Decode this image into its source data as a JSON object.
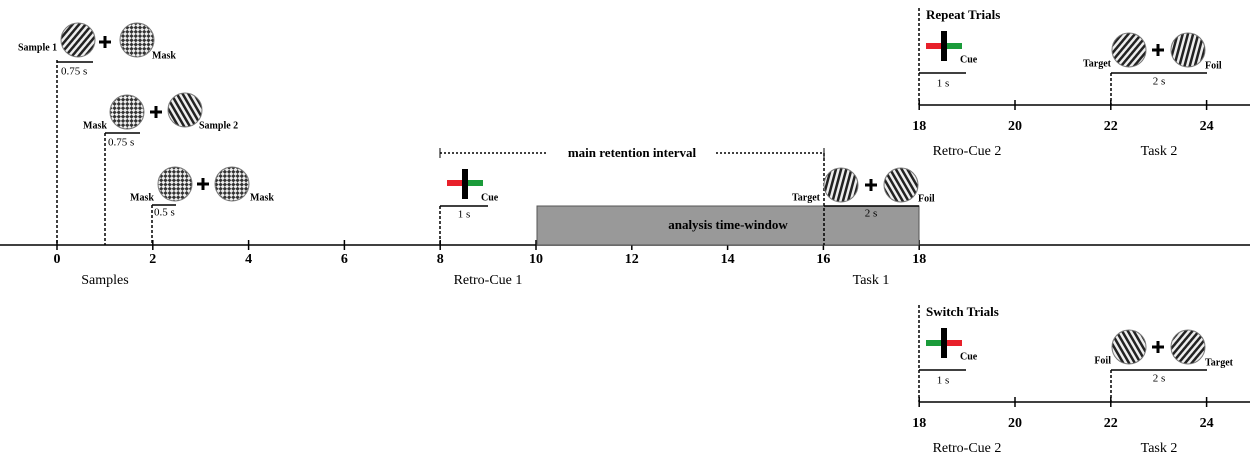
{
  "main_timeline": {
    "ticks": [
      0,
      2,
      4,
      6,
      8,
      10,
      12,
      14,
      16,
      18
    ],
    "phases": [
      "Samples",
      "Retro-Cue 1",
      "Task 1"
    ]
  },
  "samples": [
    {
      "left": "Sample 1",
      "right": "Mask",
      "duration": "0.75 s"
    },
    {
      "left": "Mask",
      "right": "Sample 2",
      "duration": "0.75 s"
    },
    {
      "left": "Mask",
      "right": "Mask",
      "duration": "0.5 s"
    }
  ],
  "retention_interval": "main retention interval",
  "retro_cue_1": {
    "cue": "Cue",
    "duration": "1 s"
  },
  "analysis_window": "analysis time-window",
  "task_1": {
    "left": "Target",
    "right": "Foil",
    "duration": "2 s"
  },
  "repeat_trials": {
    "title": "Repeat Trials",
    "cue": "Cue",
    "cue_duration": "1 s",
    "left": "Target",
    "right": "Foil",
    "task_duration": "2 s",
    "ticks": [
      18,
      20,
      22,
      24
    ],
    "phases": [
      "Retro-Cue 2",
      "Task 2"
    ]
  },
  "switch_trials": {
    "title": "Switch Trials",
    "cue": "Cue",
    "cue_duration": "1 s",
    "left": "Foil",
    "right": "Target",
    "task_duration": "2 s",
    "ticks": [
      18,
      20,
      22,
      24
    ],
    "phases": [
      "Retro-Cue 2",
      "Task 2"
    ]
  }
}
